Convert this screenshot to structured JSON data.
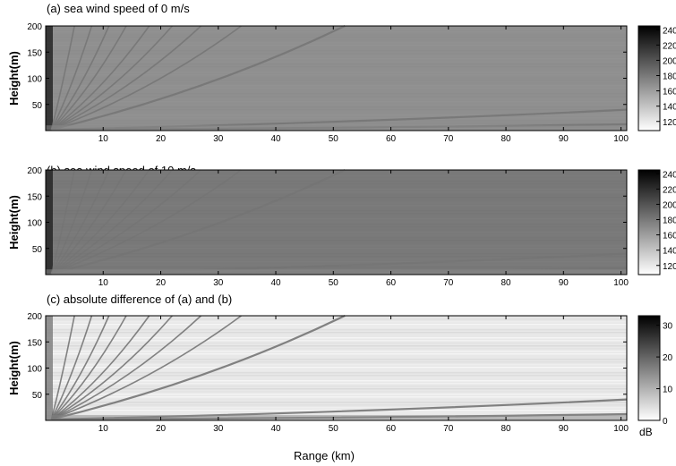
{
  "chart_data": [
    {
      "type": "heatmap",
      "title": "(a) sea wind speed of 0 m/s",
      "ylabel": "Height(m)",
      "xlim": [
        0,
        101
      ],
      "ylim": [
        0,
        200
      ],
      "x_ticks": [
        10,
        20,
        30,
        40,
        50,
        60,
        70,
        80,
        90,
        100
      ],
      "y_ticks": [
        50,
        100,
        150,
        200
      ],
      "colorbar": {
        "ticks": [
          120,
          140,
          160,
          180,
          200,
          220,
          240
        ],
        "range": [
          108,
          245
        ],
        "unit": ""
      },
      "colormap": "gray-reversed",
      "background_level": 168
    },
    {
      "type": "heatmap",
      "title": "(b) sea wind speed of 10 m/s",
      "ylabel": "Height(m)",
      "xlim": [
        0,
        101
      ],
      "ylim": [
        0,
        200
      ],
      "x_ticks": [
        10,
        20,
        30,
        40,
        50,
        60,
        70,
        80,
        90,
        100
      ],
      "y_ticks": [
        50,
        100,
        150,
        200
      ],
      "colorbar": {
        "ticks": [
          120,
          140,
          160,
          180,
          200,
          220,
          240
        ],
        "range": [
          108,
          245
        ],
        "unit": ""
      },
      "colormap": "gray-reversed",
      "background_level": 180
    },
    {
      "type": "heatmap",
      "title": "(c) absolute difference of (a) and (b)",
      "ylabel": "Height(m)",
      "xlabel": "Range (km)",
      "xlim": [
        0,
        101
      ],
      "ylim": [
        0,
        200
      ],
      "x_ticks": [
        10,
        20,
        30,
        40,
        50,
        60,
        70,
        80,
        90,
        100
      ],
      "y_ticks": [
        50,
        100,
        150,
        200
      ],
      "colorbar": {
        "ticks": [
          0,
          10,
          20,
          30
        ],
        "range": [
          0,
          33
        ],
        "unit": "dB"
      },
      "colormap": "gray-reversed",
      "background_level": 3
    }
  ]
}
